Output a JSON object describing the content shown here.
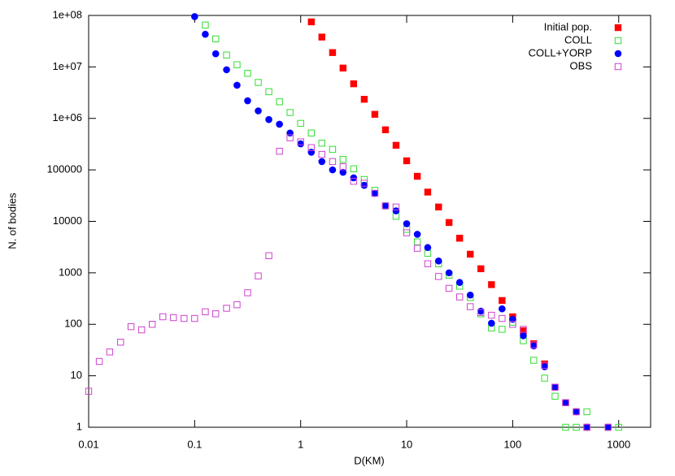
{
  "chart_data": {
    "type": "scatter",
    "x_label": "D(KM)",
    "y_label": "N. of bodies",
    "xscale": "log",
    "yscale": "log",
    "xlim": [
      0.01,
      2000
    ],
    "ylim": [
      1,
      100000000
    ],
    "xticks": [
      0.01,
      0.1,
      1,
      10,
      100,
      1000
    ],
    "yticks": [
      1,
      10,
      100,
      1000,
      10000,
      100000,
      {
        "value": 1000000,
        "label": "1e+06"
      },
      {
        "value": 10000000,
        "label": "1e+07"
      },
      {
        "value": 100000000,
        "label": "1e+08"
      }
    ],
    "legend": "top-right",
    "series": [
      {
        "name": "Initial pop.",
        "color": "#ff0000",
        "marker": "square",
        "filled": true,
        "x": [
          1.26,
          1.585,
          2,
          2.51,
          3.16,
          3.98,
          5.01,
          6.31,
          7.94,
          10,
          12.6,
          15.8,
          20,
          25.1,
          31.6,
          39.8,
          50.1,
          63.1,
          79.4,
          100,
          126,
          158,
          200,
          251,
          316,
          398,
          501,
          794
        ],
        "values": [
          75000000,
          38000000,
          19000000,
          9500000,
          4700000,
          2350000,
          1200000,
          600000,
          300000,
          150000,
          75000,
          37000,
          19000,
          9500,
          4700,
          2300,
          1200,
          590,
          290,
          140,
          75,
          42,
          17,
          6,
          3,
          2,
          1,
          1
        ]
      },
      {
        "name": "COLL",
        "color": "#33dd33",
        "marker": "square",
        "filled": false,
        "x": [
          0.126,
          0.158,
          0.2,
          0.251,
          0.316,
          0.398,
          0.501,
          0.631,
          0.794,
          1,
          1.26,
          1.585,
          2,
          2.51,
          3.16,
          3.98,
          5.01,
          6.31,
          7.94,
          10,
          12.6,
          15.8,
          20,
          25.1,
          31.6,
          39.8,
          50.1,
          63.1,
          79.4,
          100,
          126,
          158,
          200,
          251,
          316,
          398,
          501,
          1000
        ],
        "values": [
          65000000,
          35000000,
          17000000,
          11000000,
          7500000,
          5000000,
          3300000,
          2100000,
          1300000,
          800000,
          520000,
          330000,
          250000,
          160000,
          105000,
          65000,
          40000,
          20000,
          12500,
          7000,
          4000,
          2400,
          1500,
          900,
          550,
          330,
          160,
          85,
          80,
          110,
          48,
          20,
          9,
          4,
          1,
          1,
          2,
          1
        ]
      },
      {
        "name": "COLL+YORP",
        "color": "#0000ff",
        "marker": "circle",
        "filled": true,
        "x": [
          0.1,
          0.126,
          0.158,
          0.2,
          0.251,
          0.316,
          0.398,
          0.501,
          0.631,
          0.794,
          1,
          1.26,
          1.585,
          2,
          2.51,
          3.16,
          3.98,
          5.01,
          6.31,
          7.94,
          10,
          12.6,
          15.8,
          20,
          25.1,
          31.6,
          39.8,
          50.1,
          63.1,
          79.4,
          100,
          126,
          158,
          200,
          251,
          316,
          398,
          501,
          794
        ],
        "values": [
          95000000,
          43000000,
          18000000,
          8800000,
          4400000,
          2200000,
          1400000,
          950000,
          770000,
          520000,
          320000,
          220000,
          145000,
          100000,
          90000,
          70000,
          50000,
          35000,
          20000,
          16000,
          9000,
          5600,
          3100,
          1700,
          1000,
          650,
          370,
          180,
          105,
          200,
          125,
          60,
          38,
          15,
          6,
          3,
          2,
          1,
          1
        ]
      },
      {
        "name": "OBS",
        "color": "#cc44cc",
        "marker": "square",
        "filled": false,
        "x": [
          0.01,
          0.0126,
          0.0158,
          0.02,
          0.0251,
          0.0316,
          0.0398,
          0.0501,
          0.0631,
          0.0794,
          0.1,
          0.126,
          0.158,
          0.2,
          0.251,
          0.316,
          0.398,
          0.501,
          0.631,
          0.794,
          1,
          1.26,
          1.585,
          2,
          2.51,
          3.16,
          3.98,
          5.01,
          6.31,
          7.94,
          10,
          12.6,
          15.8,
          20,
          25.1,
          31.6,
          39.8,
          50.1,
          63.1,
          79.4,
          100,
          126,
          158,
          200,
          251,
          316,
          398,
          501,
          794
        ],
        "values": [
          5,
          19,
          29,
          45,
          90,
          78,
          100,
          140,
          135,
          130,
          130,
          175,
          160,
          205,
          240,
          410,
          870,
          2150,
          230000,
          420000,
          350000,
          270000,
          200000,
          145000,
          115000,
          60000,
          55000,
          35000,
          20000,
          19000,
          6000,
          3000,
          1500,
          850,
          500,
          340,
          220,
          170,
          150,
          130,
          100,
          80,
          40,
          16,
          6,
          3,
          2,
          1,
          1
        ]
      }
    ]
  }
}
